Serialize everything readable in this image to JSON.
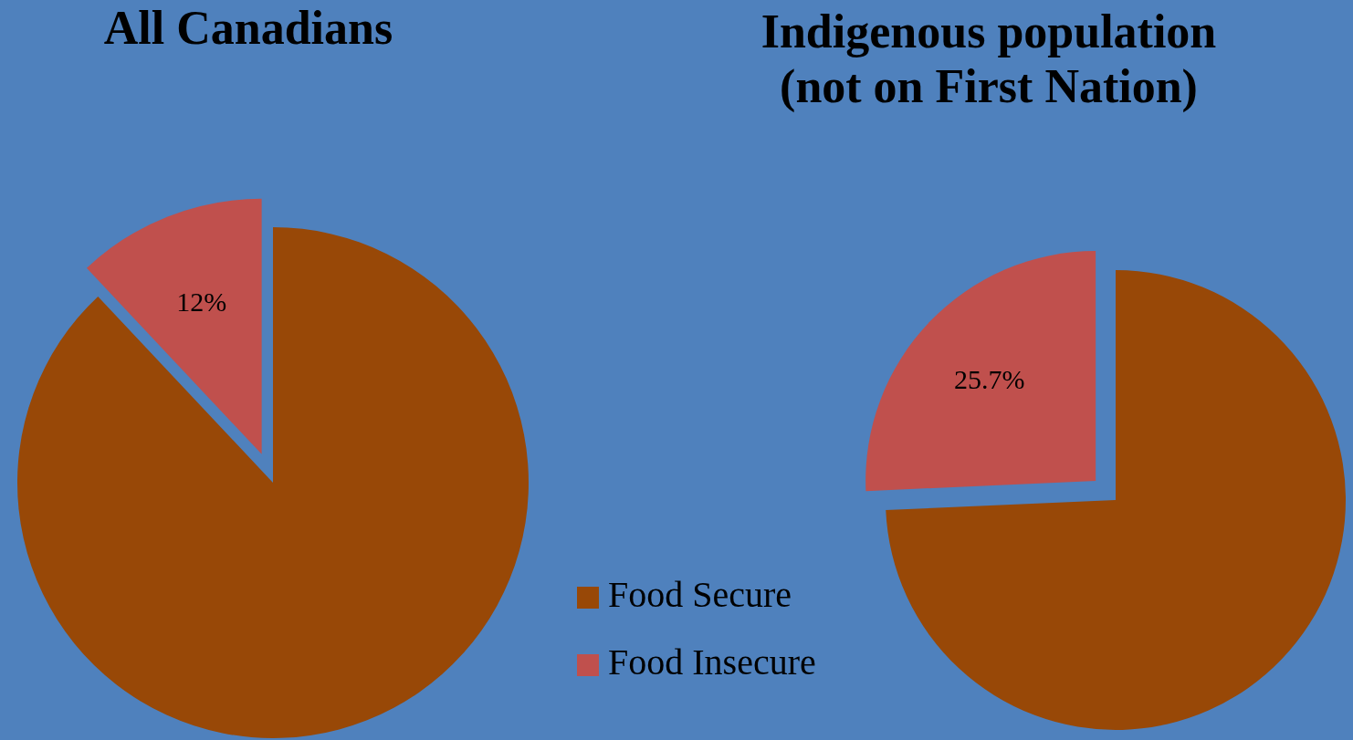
{
  "chart_data": [
    {
      "type": "pie",
      "title": "All Canadians",
      "categories": [
        "Food Secure",
        "Food Insecure"
      ],
      "values": [
        88,
        12
      ],
      "colors": [
        "#984807",
        "#c0504d"
      ],
      "value_labels": [
        null,
        "12%"
      ],
      "legend": "right"
    },
    {
      "type": "pie",
      "title": "Indigenous population (not on First Nation)",
      "categories": [
        null,
        null
      ],
      "values": [
        74.3,
        25.7
      ],
      "colors": [
        "#984807",
        "#c0504d"
      ],
      "value_labels": [
        null,
        "25.7%"
      ]
    }
  ]
}
